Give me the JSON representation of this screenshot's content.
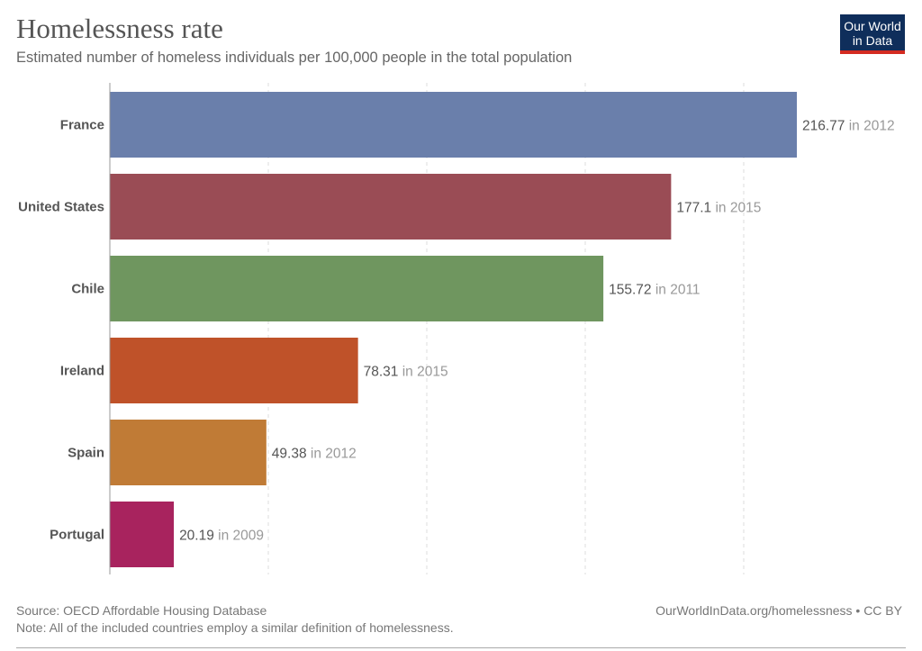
{
  "title": "Homelessness rate",
  "subtitle": "Estimated number of homeless individuals per 100,000 people in the total population",
  "logo": {
    "line1": "Our World",
    "line2": "in Data"
  },
  "footer": {
    "source": "Source: OECD Affordable Housing Database",
    "note": "Note: All of the included countries employ a similar definition of homelessness.",
    "url": "OurWorldInData.org/homelessness • CC BY"
  },
  "chart_data": {
    "type": "bar",
    "orientation": "horizontal",
    "categories": [
      "France",
      "United States",
      "Chile",
      "Ireland",
      "Spain",
      "Portugal"
    ],
    "values": [
      216.77,
      177.1,
      155.72,
      78.31,
      49.38,
      20.19
    ],
    "years": [
      "in 2012",
      "in 2015",
      "in 2011",
      "in 2015",
      "in 2012",
      "in 2009"
    ],
    "colors": [
      "#6a7fab",
      "#9a4c55",
      "#6f965f",
      "#bf5229",
      "#c07b36",
      "#a8235e"
    ],
    "xlim": [
      0,
      216.77
    ],
    "gridlines": [
      50,
      100,
      150,
      200
    ],
    "grid": true,
    "title": "Homelessness rate"
  }
}
